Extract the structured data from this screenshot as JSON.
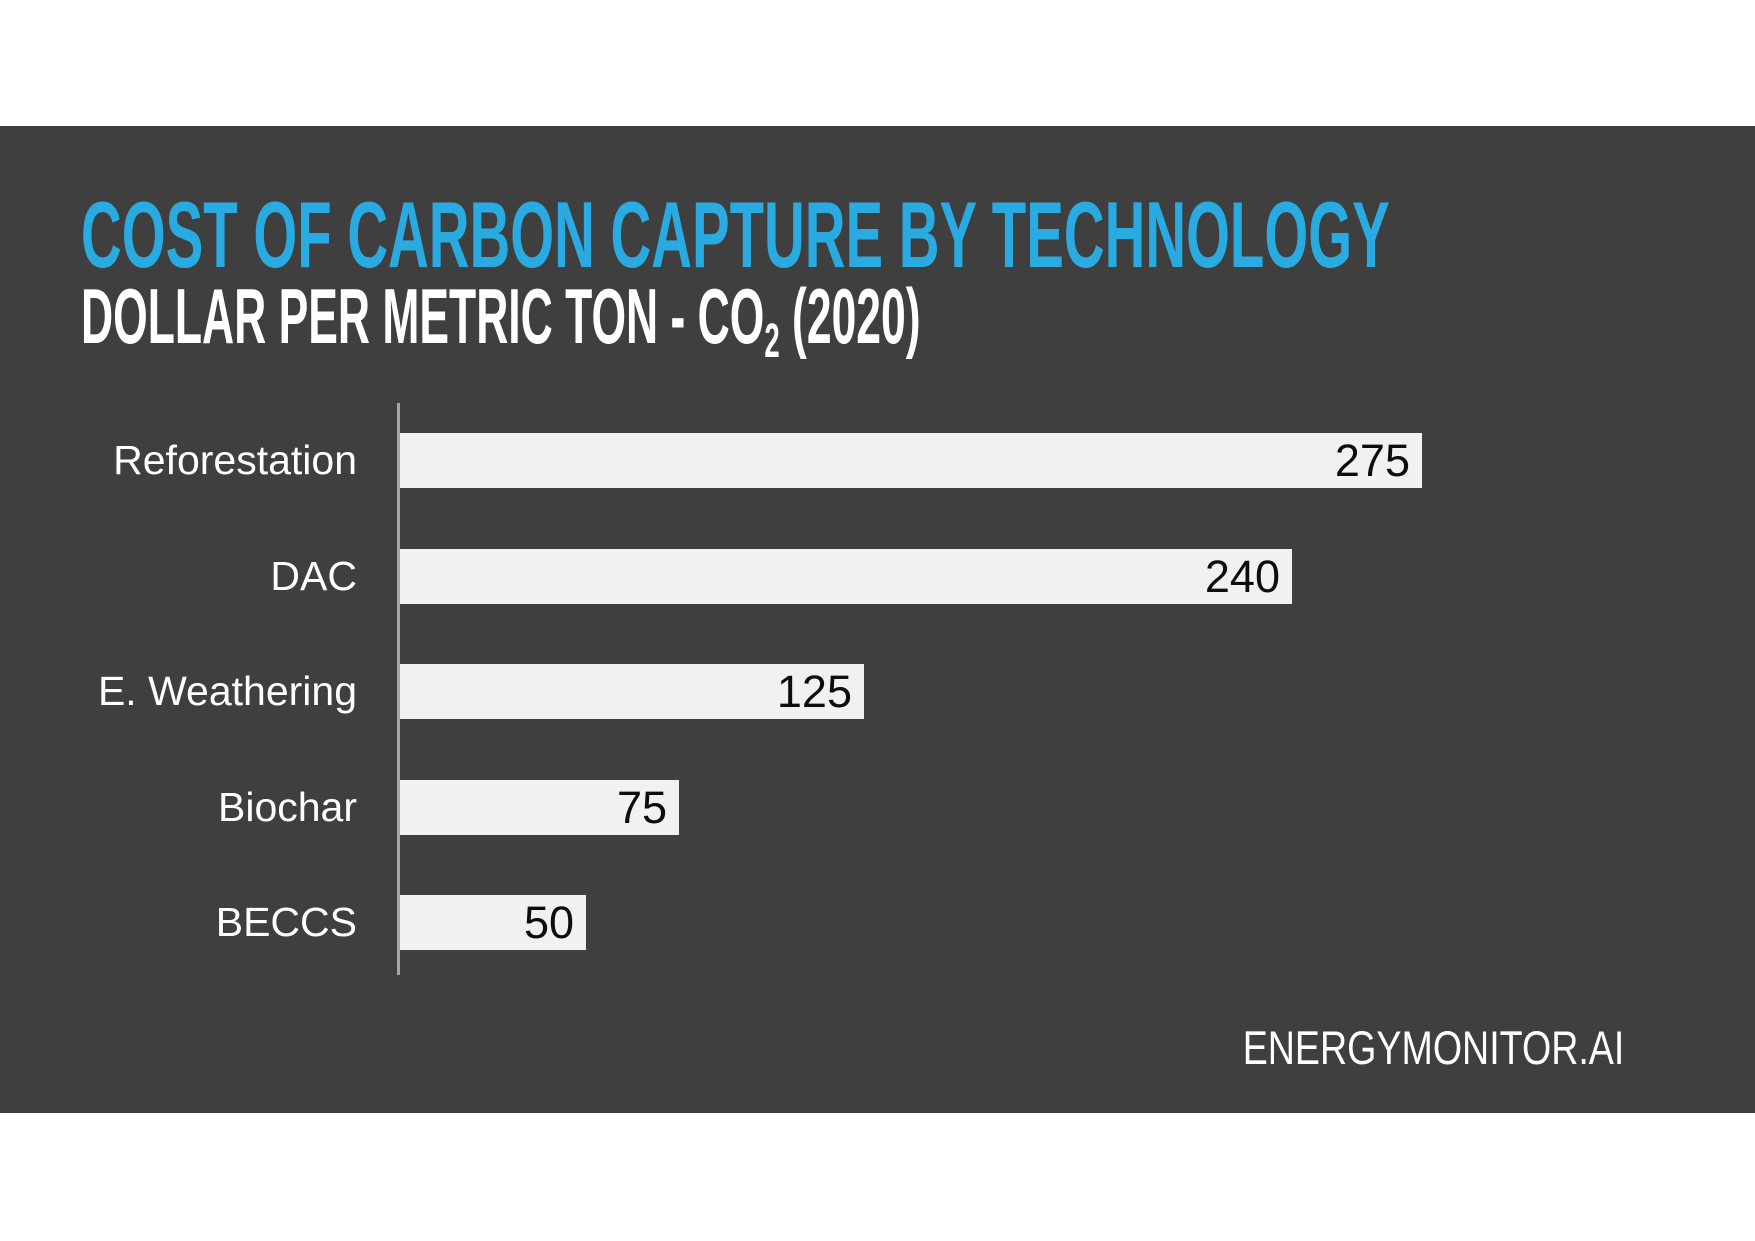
{
  "slide": {
    "title": "COST OF CARBON CAPTURE BY TECHNOLOGY",
    "subtitle_prefix": "DOLLAR PER METRIC TON - CO",
    "subtitle_sub": "2",
    "subtitle_suffix": " (2020)",
    "source": "ENERGYMONITOR.AI"
  },
  "colors": {
    "page_bg": "#ffffff",
    "slide_bg": "#3f3f3f",
    "title_accent": "#29abe2",
    "bar_fill": "#f1f1f1",
    "axis_line": "#a6a6a6",
    "value_text": "#0d0d0d",
    "label_text": "#ffffff"
  },
  "chart_data": {
    "type": "bar",
    "orientation": "horizontal",
    "title": "COST OF CARBON CAPTURE BY TECHNOLOGY",
    "subtitle": "DOLLAR PER METRIC TON - CO2 (2020)",
    "source": "ENERGYMONITOR.AI",
    "categories": [
      "Reforestation",
      "DAC",
      "E. Weathering",
      "Biochar",
      "BECCS"
    ],
    "values": [
      275,
      240,
      125,
      75,
      50
    ],
    "xlabel": "",
    "ylabel": "",
    "xlim": [
      0,
      300
    ],
    "gridlines": false,
    "legend": false,
    "value_labels_inside_bars": true
  }
}
